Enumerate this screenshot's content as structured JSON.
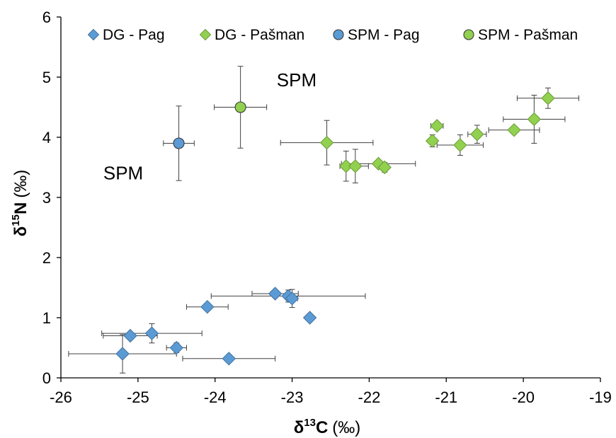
{
  "colors": {
    "blue": "#5B9BD5",
    "blue_edge": "#41719C",
    "green": "#92D050",
    "green_edge": "#6A9A36",
    "error_bar": "#404040",
    "axis": "#000000"
  },
  "chart_data": {
    "type": "scatter",
    "xlabel_main": "δ",
    "xlabel_sup": "13",
    "xlabel_rest": "C",
    "xlabel_unit": "(‰)",
    "ylabel_main": "δ",
    "ylabel_sup": "15",
    "ylabel_rest": "N",
    "ylabel_unit": "(‰)",
    "xlim": [
      -26,
      -19
    ],
    "ylim": [
      0,
      6
    ],
    "xticks": [
      -26,
      -25,
      -24,
      -23,
      -22,
      -21,
      -20,
      -19
    ],
    "yticks": [
      0,
      1,
      2,
      3,
      4,
      5,
      6
    ],
    "grid": false,
    "legend_position": "top",
    "annotations": [
      {
        "text": "SPM",
        "x": -23.2,
        "y": 4.85
      },
      {
        "text": "SPM",
        "x": -25.45,
        "y": 3.3
      }
    ],
    "series": [
      {
        "name": "DG - Pag",
        "marker": "diamond",
        "color_key": "blue",
        "points": [
          {
            "x": -25.2,
            "y": 0.4,
            "xerr": 0.7,
            "yerr": 0.32
          },
          {
            "x": -25.1,
            "y": 0.7,
            "xerr": 0.35,
            "yerr": 0
          },
          {
            "x": -24.82,
            "y": 0.74,
            "xerr": 0.65,
            "yerr": 0.16
          },
          {
            "x": -24.5,
            "y": 0.5,
            "xerr": 0.13,
            "yerr": 0.08
          },
          {
            "x": -24.1,
            "y": 1.18,
            "xerr": 0.27,
            "yerr": 0
          },
          {
            "x": -23.82,
            "y": 0.32,
            "xerr": 0.6,
            "yerr": 0
          },
          {
            "x": -23.22,
            "y": 1.4,
            "xerr": 0.3,
            "yerr": 0
          },
          {
            "x": -23.05,
            "y": 1.36,
            "xerr": 1,
            "yerr": 0.1
          },
          {
            "x": -23.0,
            "y": 1.32,
            "xerr": 0.07,
            "yerr": 0.15
          },
          {
            "x": -22.77,
            "y": 1.0,
            "xerr": 0,
            "yerr": 0
          }
        ]
      },
      {
        "name": "DG - Pašman",
        "marker": "diamond",
        "color_key": "green",
        "points": [
          {
            "x": -22.55,
            "y": 3.91,
            "xerr": 0.6,
            "yerr": 0.37
          },
          {
            "x": -22.3,
            "y": 3.52,
            "xerr": 0.08,
            "yerr": 0.25
          },
          {
            "x": -22.18,
            "y": 3.52,
            "xerr": 0.17,
            "yerr": 0.28
          },
          {
            "x": -21.88,
            "y": 3.56,
            "xerr": 0.48,
            "yerr": 0.06
          },
          {
            "x": -21.8,
            "y": 3.5,
            "xerr": 0.05,
            "yerr": 0.08
          },
          {
            "x": -21.18,
            "y": 3.94,
            "xerr": 0.05,
            "yerr": 0.1
          },
          {
            "x": -21.12,
            "y": 4.19,
            "xerr": 0.08,
            "yerr": 0
          },
          {
            "x": -20.82,
            "y": 3.87,
            "xerr": 0.3,
            "yerr": 0.17
          },
          {
            "x": -20.6,
            "y": 4.05,
            "xerr": 0.12,
            "yerr": 0.15
          },
          {
            "x": -20.12,
            "y": 4.12,
            "xerr": 0.33,
            "yerr": 0
          },
          {
            "x": -19.86,
            "y": 4.3,
            "xerr": 0.4,
            "yerr": 0.4
          },
          {
            "x": -19.68,
            "y": 4.65,
            "xerr": 0.4,
            "yerr": 0.17
          }
        ]
      },
      {
        "name": "SPM - Pag",
        "marker": "circle",
        "color_key": "blue",
        "points": [
          {
            "x": -24.47,
            "y": 3.9,
            "xerr": 0.2,
            "yerr": 0.62
          }
        ]
      },
      {
        "name": "SPM - Pašman",
        "marker": "circle",
        "color_key": "green",
        "points": [
          {
            "x": -23.67,
            "y": 4.5,
            "xerr": 0.34,
            "yerr": 0.68
          }
        ]
      }
    ]
  }
}
